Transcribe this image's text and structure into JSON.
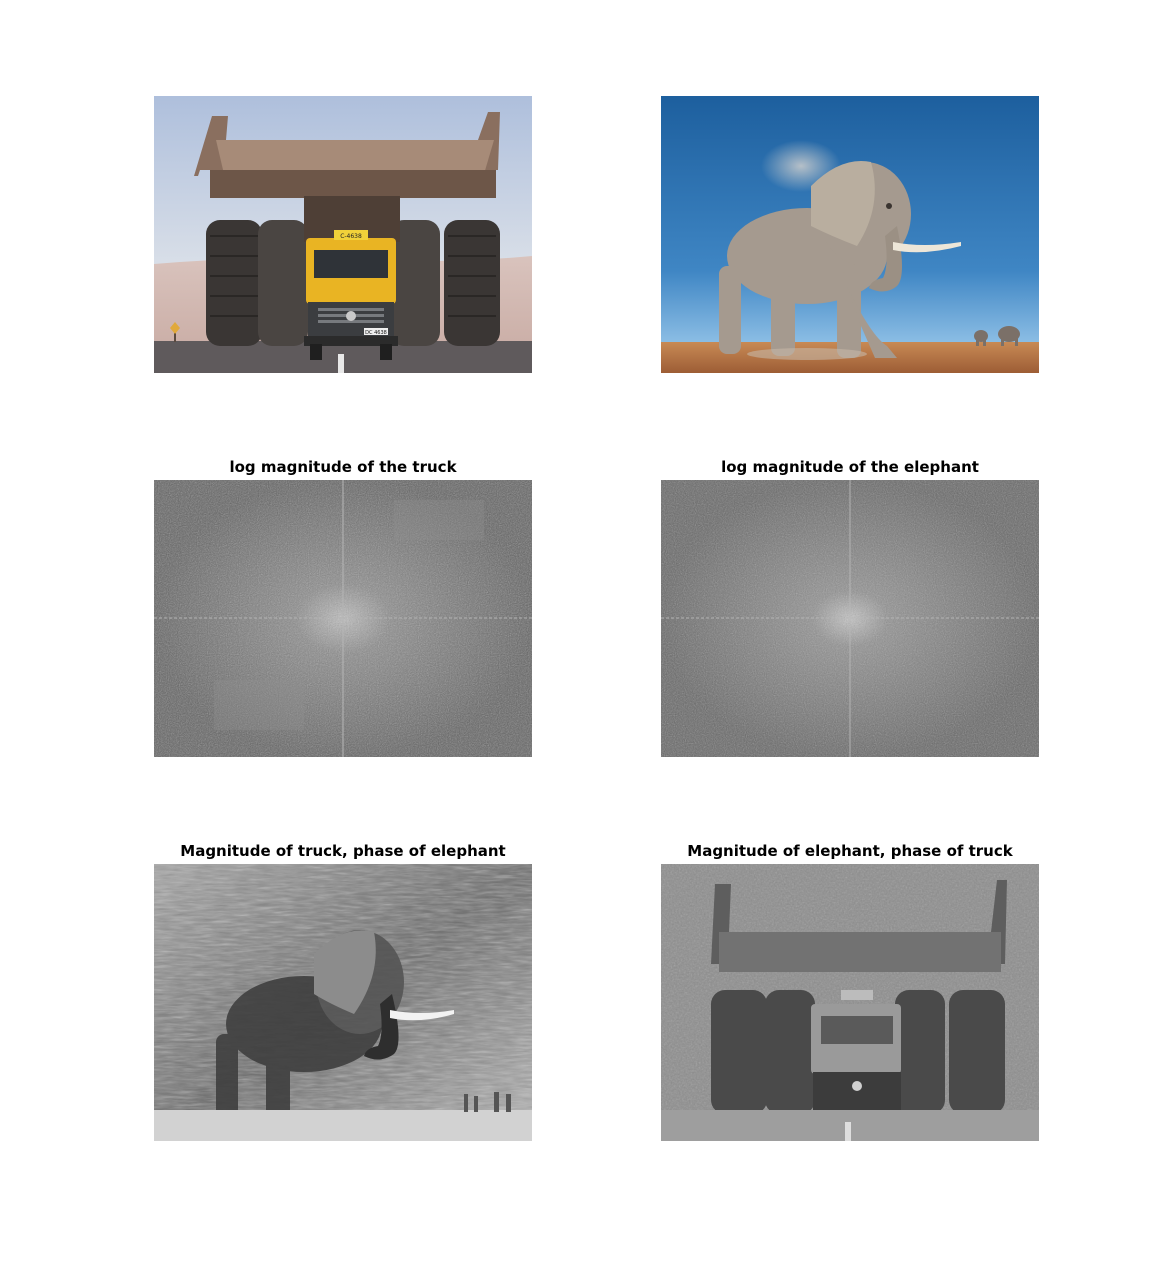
{
  "figure": {
    "panels": [
      {
        "id": "truck-image",
        "title": ""
      },
      {
        "id": "elephant-image",
        "title": ""
      },
      {
        "id": "truck-log-magnitude",
        "title": "log magnitude of the truck"
      },
      {
        "id": "elephant-log-magnitude",
        "title": "log magnitude of the elephant"
      },
      {
        "id": "truck-magnitude-elephant-phase",
        "title": "Magnitude of truck, phase of elephant"
      },
      {
        "id": "elephant-magnitude-truck-phase",
        "title": "Magnitude of elephant, phase of truck"
      }
    ]
  },
  "truck_plate": {
    "cab_sign": "C-4638",
    "license": "DC 4638"
  },
  "colors": {
    "sky_truck": "#c9d6e8",
    "sky_elephant": "#3a78b8",
    "ground_elephant": "#b2744a",
    "truck_cab": "#e9b423",
    "spectrum_gray": "#6e6e6e"
  }
}
